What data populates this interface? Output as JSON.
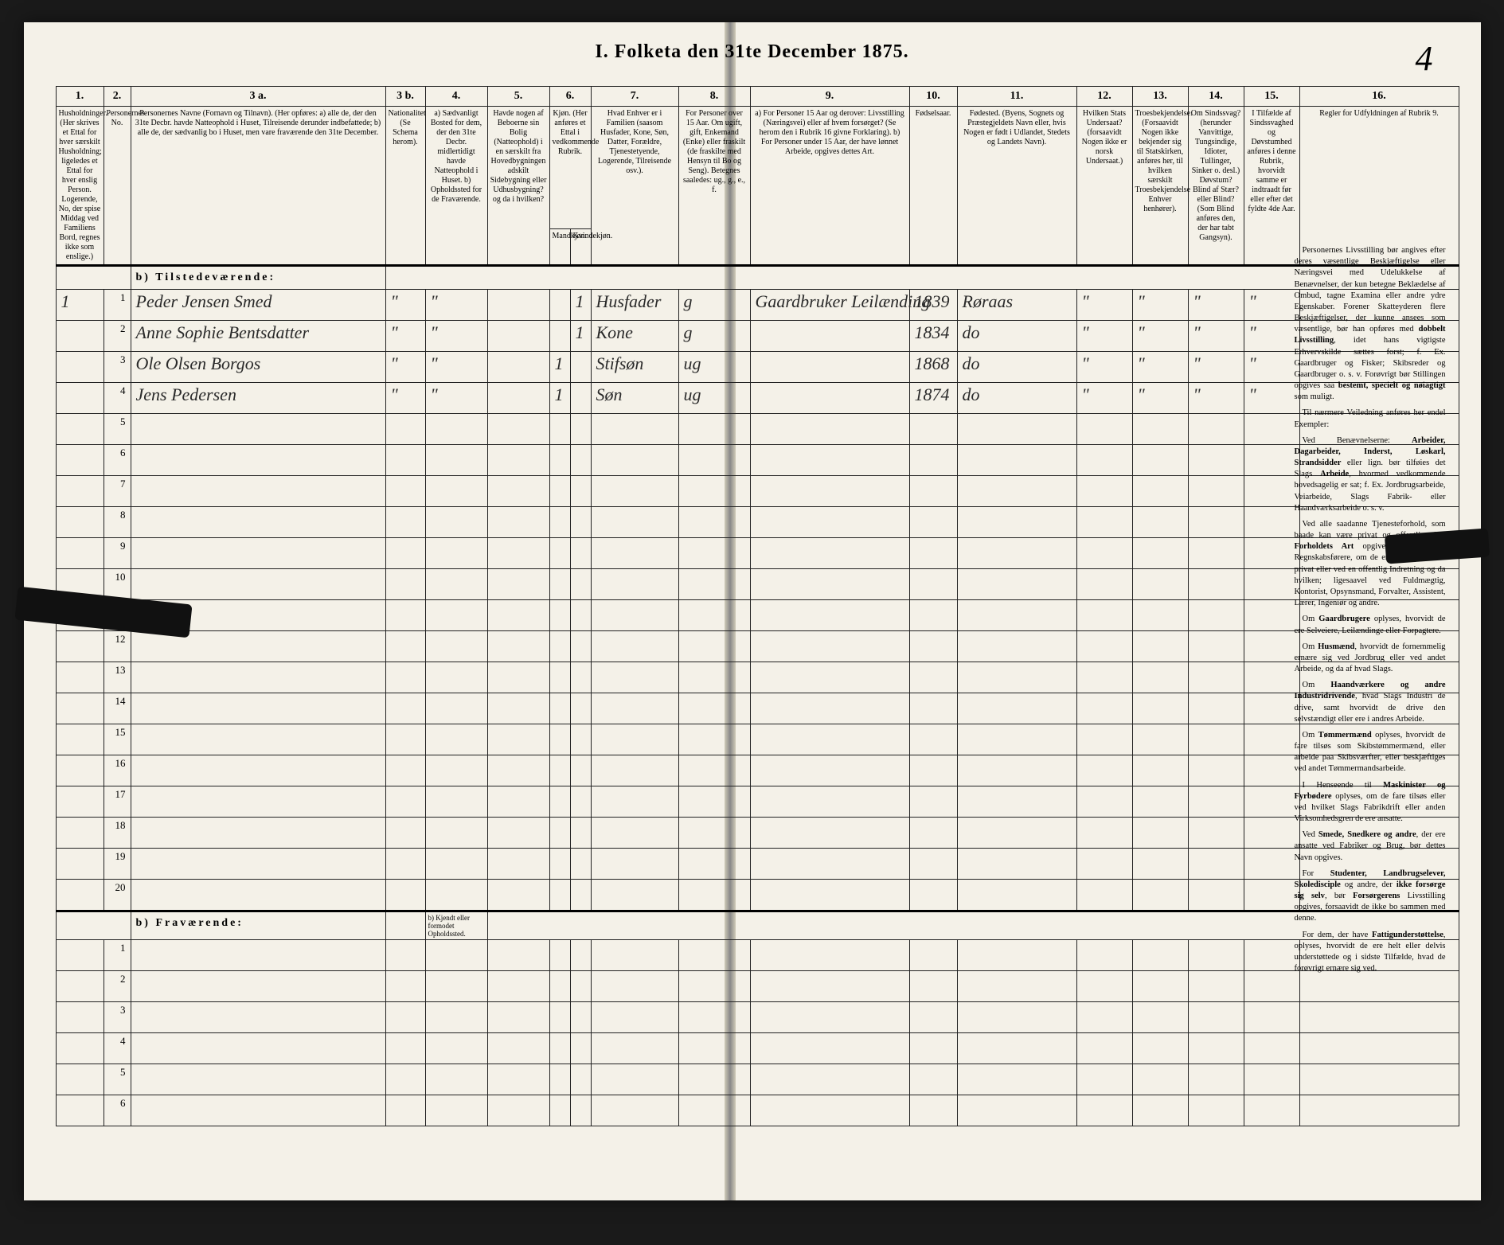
{
  "title": "I.  Folketa  den 31te December 1875.",
  "page_number_handwritten": "4",
  "columns": {
    "c1": "1.",
    "c2": "2.",
    "c3a": "3 a.",
    "c3b": "3 b.",
    "c4": "4.",
    "c5": "5.",
    "c6": "6.",
    "c7": "7.",
    "c8": "8.",
    "c9": "9.",
    "c10": "10.",
    "c11": "11.",
    "c12": "12.",
    "c13": "13.",
    "c14": "14.",
    "c15": "15.",
    "c16": "16."
  },
  "headers": {
    "h1": "Husholdninger. (Her skrives et Ettal for hver særskilt Husholdning; ligeledes et Ettal for hver enslig Person. Logerende, No, der spise Middag ved Familiens Bord, regnes ikke som enslige.)",
    "h2": "Personernes No.",
    "h3a": "Personernes Navne (Fornavn og Tilnavn). (Her opføres: a) alle de, der den 31te Decbr. havde Natteophold i Huset, Tilreisende derunder indbefattede; b) alle de, der sædvanlig bo i Huset, men vare fraværende den 31te December.",
    "h3b": "Nationalitet (Se Schema herom).",
    "h4": "a) Sædvanligt Bosted for dem, der den 31te Decbr. midlertidigt havde Natteophold i Huset. b) Opholdssted for de Fraværende.",
    "h5": "Havde nogen af Beboerne sin Bolig (Natteophold) i en særskilt fra Hovedbygningen adskilt Sidebygning eller Udhusbygning? og da i hvilken?",
    "h6": "Kjøn. (Her anføres et Ettal i vedkommende Rubrik.",
    "h6a": "Mandkjøn.",
    "h6b": "Kvindekjøn.",
    "h7": "Hvad Enhver er i Familien (saasom Husfader, Kone, Søn, Datter, Forældre, Tjenestetyende, Logerende, Tilreisende osv.).",
    "h8": "For Personer over 15 Aar. Om ugift, gift, Enkemand (Enke) eller fraskilt (de fraskilte med Hensyn til Bo og Seng). Betegnes saaledes: ug., g., e., f.",
    "h9": "a) For Personer 15 Aar og derover: Livsstilling (Næringsvei) eller af hvem forsørget? (Se herom den i Rubrik 16 givne Forklaring). b) For Personer under 15 Aar, der have lønnet Arbeide, opgives dettes Art.",
    "h10": "Fødselsaar.",
    "h11": "Fødested. (Byens, Sognets og Præstegjeldets Navn eller, hvis Nogen er født i Udlandet, Stedets og Landets Navn).",
    "h12": "Hvilken Stats Undersaat? (forsaavidt Nogen ikke er norsk Undersaat.)",
    "h13": "Troesbekjendelse. (Forsaavidt Nogen ikke bekjender sig til Statskirken, anføres her, til hvilken særskilt Troesbekjendelse Enhver henhører).",
    "h14": "Om Sindssvag? (herunder Vanvittige, Tungsindige, Idioter, Tullinger, Sinker o. desl.) Døvstum? Blind af Stær? eller Blind? (Som Blind anføres den, der har tabt Gangsyn).",
    "h15": "I Tilfælde af Sindssvaghed og Døvstumhed anføres i denne Rubrik, hvorvidt samme er indtraadt før eller efter det fyldte 4de Aar.",
    "h16": "Regler for Udfyldningen af Rubrik 9."
  },
  "section_present": "b)  Tilstedeværende:",
  "section_absent": "b)  Fraværende:",
  "absent_note": "b) Kjendt eller formodet Opholdssted.",
  "entries": [
    {
      "hh": "1",
      "no": "1",
      "name": "Peder Jensen Smed",
      "nat": "\"",
      "bost": "\"",
      "byg": "",
      "mk": "",
      "kk": "1",
      "fam": "Husfader",
      "civ": "g",
      "occ": "Gaardbruker Leilænding",
      "year": "1839",
      "place": "Røraas",
      "stat": "\"",
      "tro": "\"",
      "sind": "\"",
      "tilf": "\""
    },
    {
      "hh": "",
      "no": "2",
      "name": "Anne Sophie Bentsdatter",
      "nat": "\"",
      "bost": "\"",
      "byg": "",
      "mk": "",
      "kk": "1",
      "fam": "Kone",
      "civ": "g",
      "occ": "",
      "year": "1834",
      "place": "do",
      "stat": "\"",
      "tro": "\"",
      "sind": "\"",
      "tilf": "\""
    },
    {
      "hh": "",
      "no": "3",
      "name": "Ole Olsen Borgos",
      "nat": "\"",
      "bost": "\"",
      "byg": "",
      "mk": "1",
      "kk": "",
      "fam": "Stifsøn",
      "civ": "ug",
      "occ": "",
      "year": "1868",
      "place": "do",
      "stat": "\"",
      "tro": "\"",
      "sind": "\"",
      "tilf": "\""
    },
    {
      "hh": "",
      "no": "4",
      "name": "Jens Pedersen",
      "nat": "\"",
      "bost": "\"",
      "byg": "",
      "mk": "1",
      "kk": "",
      "fam": "Søn",
      "civ": "ug",
      "occ": "",
      "year": "1874",
      "place": "do",
      "stat": "\"",
      "tro": "\"",
      "sind": "\"",
      "tilf": "\""
    }
  ],
  "rules_paragraphs": [
    "Personernes Livsstilling bør angives efter deres væsentlige Beskjæftigelse eller Næringsvei med Udelukkelse af Benævnelser, der kun betegne Beklædelse af Ombud, tagne Examina eller andre ydre Egenskaber. Forener Skatteyderen flere Beskjæftigelser, der kunne ansees som væsentlige, bør han opføres med <b>dobbelt Livsstilling</b>, idet hans vigtigste Erhvervskilde sættes forst; f. Ex. Gaardbruger og Fisker; Skibsreder og Gaardbruger o. s. v. Forøvrigt bør Stillingen opgives saa <b>bestemt, specielt og nøiagtigt</b> som muligt.",
    "Til nærmere Veiledning anføres her endel Exempler:",
    "Ved Benævnelserne: <b>Arbeider, Dagarbeider, Inderst, Løskarl, Strandsidder</b> eller lign. bør tilføies det Slags <b>Arbeide</b>, hvormed vedkommende hovedsagelig er sat; f. Ex. Jordbrugsarbeide, Veiarbeide, Slags Fabrik- eller Haandværksarbeide o. s. v.",
    "Ved alle saadanne Tjenesteforhold, som baade kan være privat og offentligt, bør <b>Forholdets Art</b> opgives, t. Ex. ved Regnskabsførere, om de ere ansatte ved en privat eller ved en offentlig Indretning og da hvilken; ligesaavel ved Fuldmægtig, Kontorist, Opsynsmand, Forvalter, Assistent, Lærer, Ingeniør og andre.",
    "Om <b>Gaardbrugere</b> oplyses, hvorvidt de ere Selveiere, Leilændinge eller Forpagtere.",
    "Om <b>Husmænd</b>, hvorvidt de fornemmelig ernære sig ved Jordbrug eller ved andet Arbeide, og da af hvad Slags.",
    "Om <b>Haandværkere og andre Industridrivende</b>, hvad Slags Industri de drive, samt hvorvidt de drive den selvstændigt eller ere i andres Arbeide.",
    "Om <b>Tømmermænd</b> oplyses, hvorvidt de fare tilsøs som Skibstømmermænd, eller arbeide paa Skibsværfter, eller beskjæftiges ved andet Tømmermandsarbeide.",
    "I Henseende til <b>Maskinister og Fyrbødere</b> oplyses, om de fare tilsøs eller ved hvilket Slags Fabrikdrift eller anden Virksomhedsgren de ere ansatte.",
    "Ved <b>Smede, Snedkere og andre</b>, der ere ansatte ved Fabriker og Brug, bør dettes Navn opgives.",
    "For <b>Studenter, Landbrugselever, Skoledisciple</b> og andre, der <b>ikke forsørge sig selv</b>, bør <b>Forsørgerens</b> Livsstilling opgives, forsaavidt de ikke bo sammen med denne.",
    "For dem, der have <b>Fattigunderstøttelse</b>, oplyses, hvorvidt de ere helt eller delvis understøttede og i sidste Tilfælde, hvad de forøvrigt ernære sig ved."
  ],
  "colwidths": {
    "c1": 60,
    "c2": 34,
    "c3a": 320,
    "c3b": 50,
    "c4": 78,
    "c5": 78,
    "c6a": 26,
    "c6b": 26,
    "c7": 110,
    "c8": 90,
    "c9": 200,
    "c10": 60,
    "c11": 150,
    "c12": 70,
    "c13": 70,
    "c14": 70,
    "c15": 70,
    "c16": 200
  },
  "colors": {
    "paper": "#f4f1e8",
    "ink": "#222222",
    "background": "#1a1a1a"
  }
}
